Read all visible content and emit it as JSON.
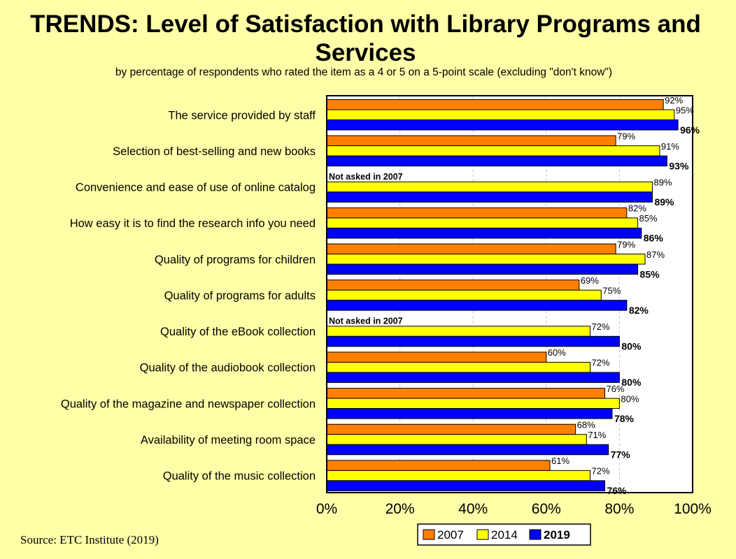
{
  "chart_data": {
    "type": "bar",
    "orientation": "horizontal",
    "title": "TRENDS: Level of Satisfaction with Library Programs and Services",
    "subtitle": "by percentage of respondents who rated the item as a 4 or 5 on a 5-point scale (excluding \"don't know\")",
    "categories": [
      "The service provided by staff",
      "Selection of best-selling and new books",
      "Convenience and ease of use of online catalog",
      "How easy it is to find the research info you need",
      "Quality of programs for children",
      "Quality of programs for adults",
      "Quality of the eBook collection",
      "Quality of the audiobook collection",
      "Quality of the magazine and newspaper collection",
      "Availability of meeting room space",
      "Quality of the music collection"
    ],
    "series": [
      {
        "name": "2007",
        "color": "#FF8000",
        "values": [
          92,
          79,
          null,
          82,
          79,
          69,
          null,
          60,
          76,
          68,
          61
        ],
        "labels": [
          "92%",
          "79%",
          "",
          "82%",
          "79%",
          "69%",
          "",
          "60%",
          "76%",
          "68%",
          "61%"
        ]
      },
      {
        "name": "2014",
        "color": "#FFFF00",
        "values": [
          95,
          91,
          89,
          85,
          87,
          75,
          72,
          72,
          80,
          71,
          72
        ],
        "labels": [
          "95%",
          "91%",
          "89%",
          "85%",
          "87%",
          "75%",
          "72%",
          "72%",
          "80%",
          "71%",
          "72%"
        ]
      },
      {
        "name": "2019",
        "color": "#0000FF",
        "values": [
          96,
          93,
          89,
          86,
          85,
          82,
          80,
          80,
          78,
          77,
          76
        ],
        "labels": [
          "96%",
          "93%",
          "89%",
          "86%",
          "85%",
          "82%",
          "80%",
          "80%",
          "78%",
          "77%",
          "76%"
        ]
      }
    ],
    "annotations": [
      "Not asked in 2007",
      "Not asked in 2007"
    ],
    "annotation_rows": [
      2,
      6
    ],
    "xlim": [
      0,
      100
    ],
    "xticks": [
      "0%",
      "20%",
      "40%",
      "60%",
      "80%",
      "100%"
    ],
    "grid": true,
    "legend_position": "bottom",
    "background": "#FFFFA8"
  },
  "source": "Source:  ETC Institute (2019)"
}
